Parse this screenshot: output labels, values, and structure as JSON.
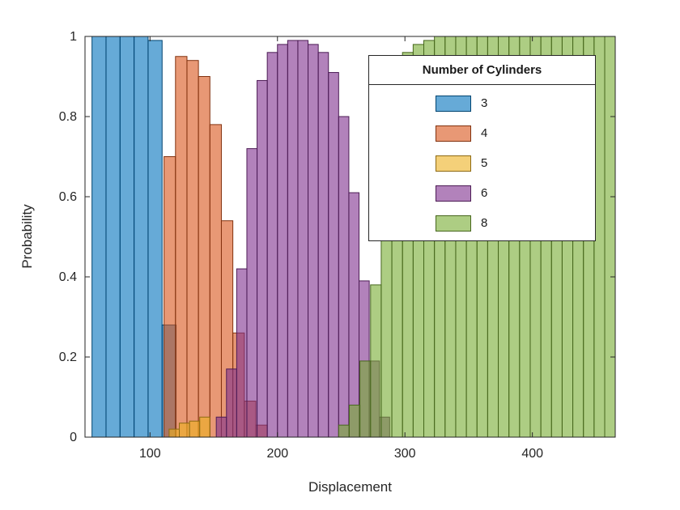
{
  "figure": {
    "background": "#ffffff"
  },
  "chart_data": {
    "type": "bar",
    "subtype": "overlaid-histograms",
    "title": "",
    "xlabel": "Displacement",
    "ylabel": "Probability",
    "xlim": [
      49,
      465
    ],
    "ylim": [
      0,
      1
    ],
    "xticks": [
      100,
      200,
      300,
      400
    ],
    "xtick_labels": [
      "100",
      "200",
      "300",
      "400"
    ],
    "yticks": [
      0,
      0.2,
      0.4,
      0.6,
      0.8,
      1
    ],
    "ytick_labels": [
      "0",
      "0.2",
      "0.4",
      "0.6",
      "0.8",
      "1"
    ],
    "grid": false,
    "axis_color": "#262626",
    "legend": {
      "title": "Number of Cylinders",
      "position": "upper-right-inside"
    },
    "series": [
      {
        "label": "3",
        "color": "#0072BD",
        "edge_color": "#004471",
        "bin_start": 54.5,
        "bin_width": 11,
        "heights": [
          1,
          1,
          1,
          1,
          0.99,
          0.28
        ]
      },
      {
        "label": "4",
        "color": "#D95319",
        "edge_color": "#82320F",
        "bin_start": 111,
        "bin_width": 9,
        "heights": [
          0.7,
          0.95,
          0.94,
          0.9,
          0.78,
          0.54,
          0.26,
          0.09,
          0.03
        ]
      },
      {
        "label": "5",
        "color": "#EDB120",
        "edge_color": "#8E6A13",
        "bin_start": 115,
        "bin_width": 8,
        "heights": [
          0.02,
          0.035,
          0.04,
          0.05
        ]
      },
      {
        "label": "6",
        "color": "#7E2F8E",
        "edge_color": "#4C1C55",
        "bin_start": 152,
        "bin_width": 8,
        "heights": [
          0.05,
          0.17,
          0.42,
          0.72,
          0.89,
          0.96,
          0.98,
          0.99,
          0.99,
          0.98,
          0.96,
          0.91,
          0.8,
          0.61,
          0.39,
          0.19,
          0.05
        ]
      },
      {
        "label": "8",
        "color": "#77AC30",
        "edge_color": "#47671D",
        "bin_start": 248,
        "bin_width": 8.35,
        "heights": [
          0.03,
          0.08,
          0.19,
          0.38,
          0.62,
          0.81,
          0.96,
          0.98,
          0.99,
          1,
          1,
          1,
          1,
          1,
          1,
          1,
          1,
          1,
          1,
          1,
          1,
          1,
          1,
          1,
          1,
          1
        ]
      }
    ]
  }
}
